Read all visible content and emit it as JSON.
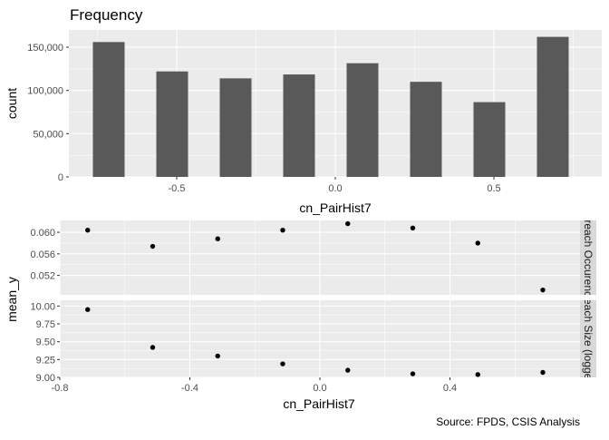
{
  "colors": {
    "panel_bg": "#ebebeb",
    "grid_major": "#ffffff",
    "bar_fill": "#595959",
    "point": "#000000",
    "strip_bg": "#d9d9d9",
    "tick_text": "#4d4d4d",
    "axis_title": "#000000"
  },
  "chart_data": [
    {
      "type": "bar",
      "title": "Frequency",
      "xlabel": "cn_PairHist7",
      "ylabel": "count",
      "x": [
        -0.7143,
        -0.5143,
        -0.3143,
        -0.1143,
        0.0857,
        0.2857,
        0.4857,
        0.6857
      ],
      "values": [
        156000,
        122000,
        114000,
        118500,
        131500,
        110000,
        86500,
        162000
      ],
      "xlim": [
        -0.84,
        0.84
      ],
      "ylim": [
        0,
        170000
      ],
      "x_ticks": [
        -0.5,
        0.0,
        0.5
      ],
      "x_tick_labels": [
        "-0.5",
        "0.0",
        "0.5"
      ],
      "y_ticks": [
        0,
        50000,
        100000,
        150000
      ],
      "y_tick_labels": [
        "0",
        "50,000",
        "100,000",
        "150,000"
      ],
      "grid": true
    },
    {
      "type": "scatter",
      "xlabel": "cn_PairHist7",
      "ylabel": "mean_y",
      "xlim": [
        -0.8,
        0.8
      ],
      "x_ticks": [
        -0.8,
        -0.4,
        0.0,
        0.4
      ],
      "x_tick_labels": [
        "-0.8",
        "-0.4",
        "0.0",
        "0.4"
      ],
      "grid": true,
      "facets": [
        {
          "strip_label": "Breach Occurence",
          "x": [
            -0.7143,
            -0.5143,
            -0.3143,
            -0.1143,
            0.0857,
            0.2857,
            0.4857,
            0.6857
          ],
          "y": [
            0.0604,
            0.0574,
            0.0588,
            0.0604,
            0.0616,
            0.0608,
            0.058,
            0.0493
          ],
          "ylim": [
            0.0484,
            0.0622
          ],
          "y_ticks": [
            0.052,
            0.056,
            0.06
          ],
          "y_tick_labels": [
            "0.052",
            "0.056",
            "0.060"
          ]
        },
        {
          "strip_label": "Breach Size (logged)",
          "x": [
            -0.7143,
            -0.5143,
            -0.3143,
            -0.1143,
            0.0857,
            0.2857,
            0.4857,
            0.6857
          ],
          "y": [
            9.95,
            9.42,
            9.3,
            9.19,
            9.1,
            9.05,
            9.04,
            9.07
          ],
          "ylim": [
            9.0,
            10.08
          ],
          "y_ticks": [
            9.0,
            9.25,
            9.5,
            9.75,
            10.0
          ],
          "y_tick_labels": [
            "9.00",
            "9.25",
            "9.50",
            "9.75",
            "10.00"
          ]
        }
      ]
    }
  ],
  "caption": "Source: FPDS, CSIS Analysis"
}
